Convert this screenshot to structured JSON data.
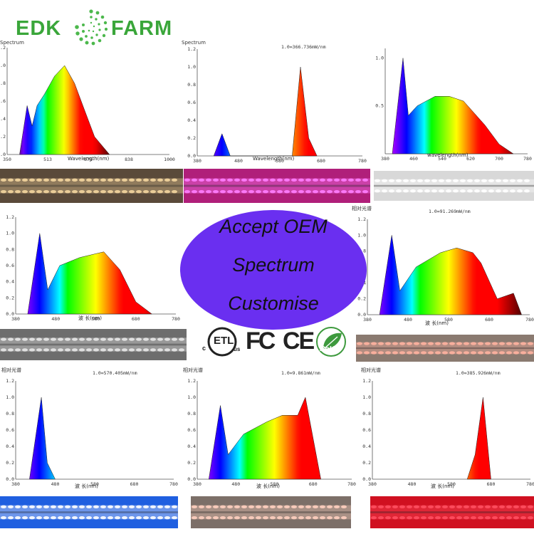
{
  "logo": {
    "left": "EDK",
    "right": "FARM"
  },
  "banner": {
    "line1": "Accept OEM",
    "line2": "Spectrum",
    "line3": "Customise"
  },
  "certifications": {
    "etl": "ETL",
    "etl_c": "c",
    "etl_us": "us",
    "fcc": "FC",
    "ce": "CE",
    "rohs": "RoHS"
  },
  "charts": [
    {
      "title": "Spectrum",
      "subtitle": "",
      "xlabel": "Wavelength(nm)",
      "xticks": [
        "350",
        "513",
        "675",
        "838",
        "1000"
      ],
      "yticks": [
        "0.0",
        "0.2",
        "0.4",
        "0.6",
        "0.8",
        "1.0",
        "1.2"
      ]
    },
    {
      "title": "Spectrum",
      "subtitle": "1.0=366.736mW/nm",
      "xlabel": "Wavelength(nm)",
      "xticks": [
        "380",
        "480",
        "580",
        "680",
        "780"
      ],
      "yticks": [
        "0.0",
        "0.2",
        "0.4",
        "0.6",
        "0.8",
        "1.0",
        "1.2"
      ]
    },
    {
      "title": "",
      "subtitle": "",
      "xlabel": "wavelength(nm)",
      "xticks": [
        "380",
        "460",
        "540",
        "620",
        "700",
        "780"
      ],
      "yticks": [
        "0.5",
        "1.0"
      ]
    },
    {
      "title": "",
      "subtitle": "",
      "xlabel": "波 长(nm)",
      "xticks": [
        "380",
        "480",
        "580",
        "680",
        "780"
      ],
      "yticks": [
        "0.0",
        "0.2",
        "0.4",
        "0.6",
        "0.8",
        "1.0",
        "1.2"
      ]
    },
    {
      "title": "相对光谱",
      "subtitle": "1.0=91.269mW/nm",
      "xlabel": "波 长(nm)",
      "xticks": [
        "380",
        "480",
        "580",
        "680",
        "780"
      ],
      "yticks": [
        "0.0",
        "0.2",
        "0.4",
        "0.6",
        "0.8",
        "1.0",
        "1.2"
      ]
    },
    {
      "title": "相对光谱",
      "subtitle": "1.0=570.405mW/nm",
      "xlabel": "波 长(nm)",
      "xticks": [
        "380",
        "480",
        "580",
        "680",
        "780"
      ],
      "yticks": [
        "0.0",
        "0.2",
        "0.4",
        "0.6",
        "0.8",
        "1.0",
        "1.2"
      ]
    },
    {
      "title": "相对光谱",
      "subtitle": "1.0=9.861mW/nm",
      "xlabel": "波 长(nm)",
      "xticks": [
        "380",
        "480",
        "580",
        "680",
        "780"
      ],
      "yticks": [
        "0.0",
        "0.2",
        "0.4",
        "0.6",
        "0.8",
        "1.0",
        "1.2"
      ]
    },
    {
      "title": "相对光谱",
      "subtitle": "1.0=385.926mW/nm",
      "xlabel": "波 长(nm)",
      "xticks": [
        "380",
        "480",
        "580",
        "680",
        "780"
      ],
      "yticks": [
        "0.0",
        "0.2",
        "0.4",
        "0.6",
        "0.8",
        "1.0",
        "1.2"
      ]
    }
  ],
  "chart_data": [
    {
      "type": "area",
      "title": "Spectrum",
      "xlabel": "Wavelength(nm)",
      "xlim": [
        350,
        1000
      ],
      "ylim": [
        0,
        1.2
      ],
      "x": [
        400,
        430,
        450,
        470,
        500,
        540,
        580,
        620,
        660,
        700,
        760
      ],
      "y": [
        0.0,
        0.55,
        0.32,
        0.55,
        0.68,
        0.88,
        1.0,
        0.8,
        0.5,
        0.2,
        0.0
      ]
    },
    {
      "type": "area",
      "title": "Spectrum",
      "subtitle": "1.0=366.736mW/nm",
      "xlabel": "Wavelength(nm)",
      "xlim": [
        380,
        780
      ],
      "ylim": [
        0,
        1.2
      ],
      "x": [
        420,
        440,
        460,
        610,
        630,
        650,
        670
      ],
      "y": [
        0.0,
        0.25,
        0.0,
        0.0,
        1.0,
        0.2,
        0.0
      ]
    },
    {
      "type": "area",
      "xlabel": "wavelength(nm)",
      "xlim": [
        380,
        780
      ],
      "ylim": [
        0,
        1.1
      ],
      "x": [
        400,
        430,
        445,
        470,
        520,
        560,
        600,
        660,
        700,
        740
      ],
      "y": [
        0.0,
        1.0,
        0.4,
        0.5,
        0.6,
        0.6,
        0.55,
        0.3,
        0.1,
        0.0
      ]
    },
    {
      "type": "area",
      "xlabel": "波 长(nm)",
      "xlim": [
        380,
        780
      ],
      "ylim": [
        0,
        1.2
      ],
      "x": [
        410,
        440,
        460,
        490,
        540,
        600,
        640,
        680,
        720
      ],
      "y": [
        0.0,
        1.0,
        0.3,
        0.6,
        0.7,
        0.77,
        0.55,
        0.15,
        0.0
      ]
    },
    {
      "type": "area",
      "title": "相对光谱",
      "subtitle": "1.0=91.269mW/nm",
      "xlabel": "波 长(nm)",
      "xlim": [
        380,
        780
      ],
      "ylim": [
        0,
        1.2
      ],
      "x": [
        410,
        440,
        460,
        500,
        560,
        600,
        640,
        660,
        700,
        740,
        760
      ],
      "y": [
        0.0,
        1.0,
        0.3,
        0.6,
        0.78,
        0.84,
        0.78,
        0.65,
        0.2,
        0.27,
        0.0
      ]
    },
    {
      "type": "area",
      "title": "相对光谱",
      "subtitle": "1.0=570.405mW/nm",
      "xlabel": "波 长(nm)",
      "xlim": [
        380,
        780
      ],
      "ylim": [
        0,
        1.2
      ],
      "x": [
        415,
        445,
        460,
        480
      ],
      "y": [
        0.0,
        1.0,
        0.2,
        0.0
      ]
    },
    {
      "type": "area",
      "title": "相对光谱",
      "subtitle": "1.0=9.861mW/nm",
      "xlabel": "波 长(nm)",
      "xlim": [
        380,
        780
      ],
      "ylim": [
        0,
        1.2
      ],
      "x": [
        410,
        440,
        460,
        500,
        560,
        600,
        640,
        660,
        700
      ],
      "y": [
        0.0,
        0.9,
        0.3,
        0.55,
        0.7,
        0.78,
        0.78,
        1.0,
        0.0
      ]
    },
    {
      "type": "area",
      "title": "相对光谱",
      "subtitle": "1.0=385.926mW/nm",
      "xlabel": "波 长(nm)",
      "xlim": [
        380,
        780
      ],
      "ylim": [
        0,
        1.2
      ],
      "x": [
        620,
        640,
        660,
        680
      ],
      "y": [
        0.0,
        0.3,
        1.0,
        0.0
      ]
    }
  ],
  "strips": [
    {
      "name": "warm-white-strip",
      "base": "#5a4a3a",
      "led": "#f5d7a0"
    },
    {
      "name": "pink-purple-strip",
      "base": "#b01f7a",
      "led": "#ff80ff"
    },
    {
      "name": "white-strip",
      "base": "#d8d8d8",
      "led": "#ffffff"
    },
    {
      "name": "full-spectrum-strip",
      "base": "#6d6d6d",
      "led": "#e8e8e8"
    },
    {
      "name": "mixed-strip",
      "base": "#8a7a70",
      "led": "#ffb2a0"
    },
    {
      "name": "blue-strip",
      "base": "#1f5fe0",
      "led": "#ffffff"
    },
    {
      "name": "red-white-strip",
      "base": "#7c6f68",
      "led": "#ffd0c0"
    },
    {
      "name": "red-strip",
      "base": "#d01020",
      "led": "#ff5060"
    }
  ],
  "colors": {
    "oval": "#6a2ff0",
    "logo_green": "#3aa63a",
    "logo_dots": "#4cb84c"
  }
}
